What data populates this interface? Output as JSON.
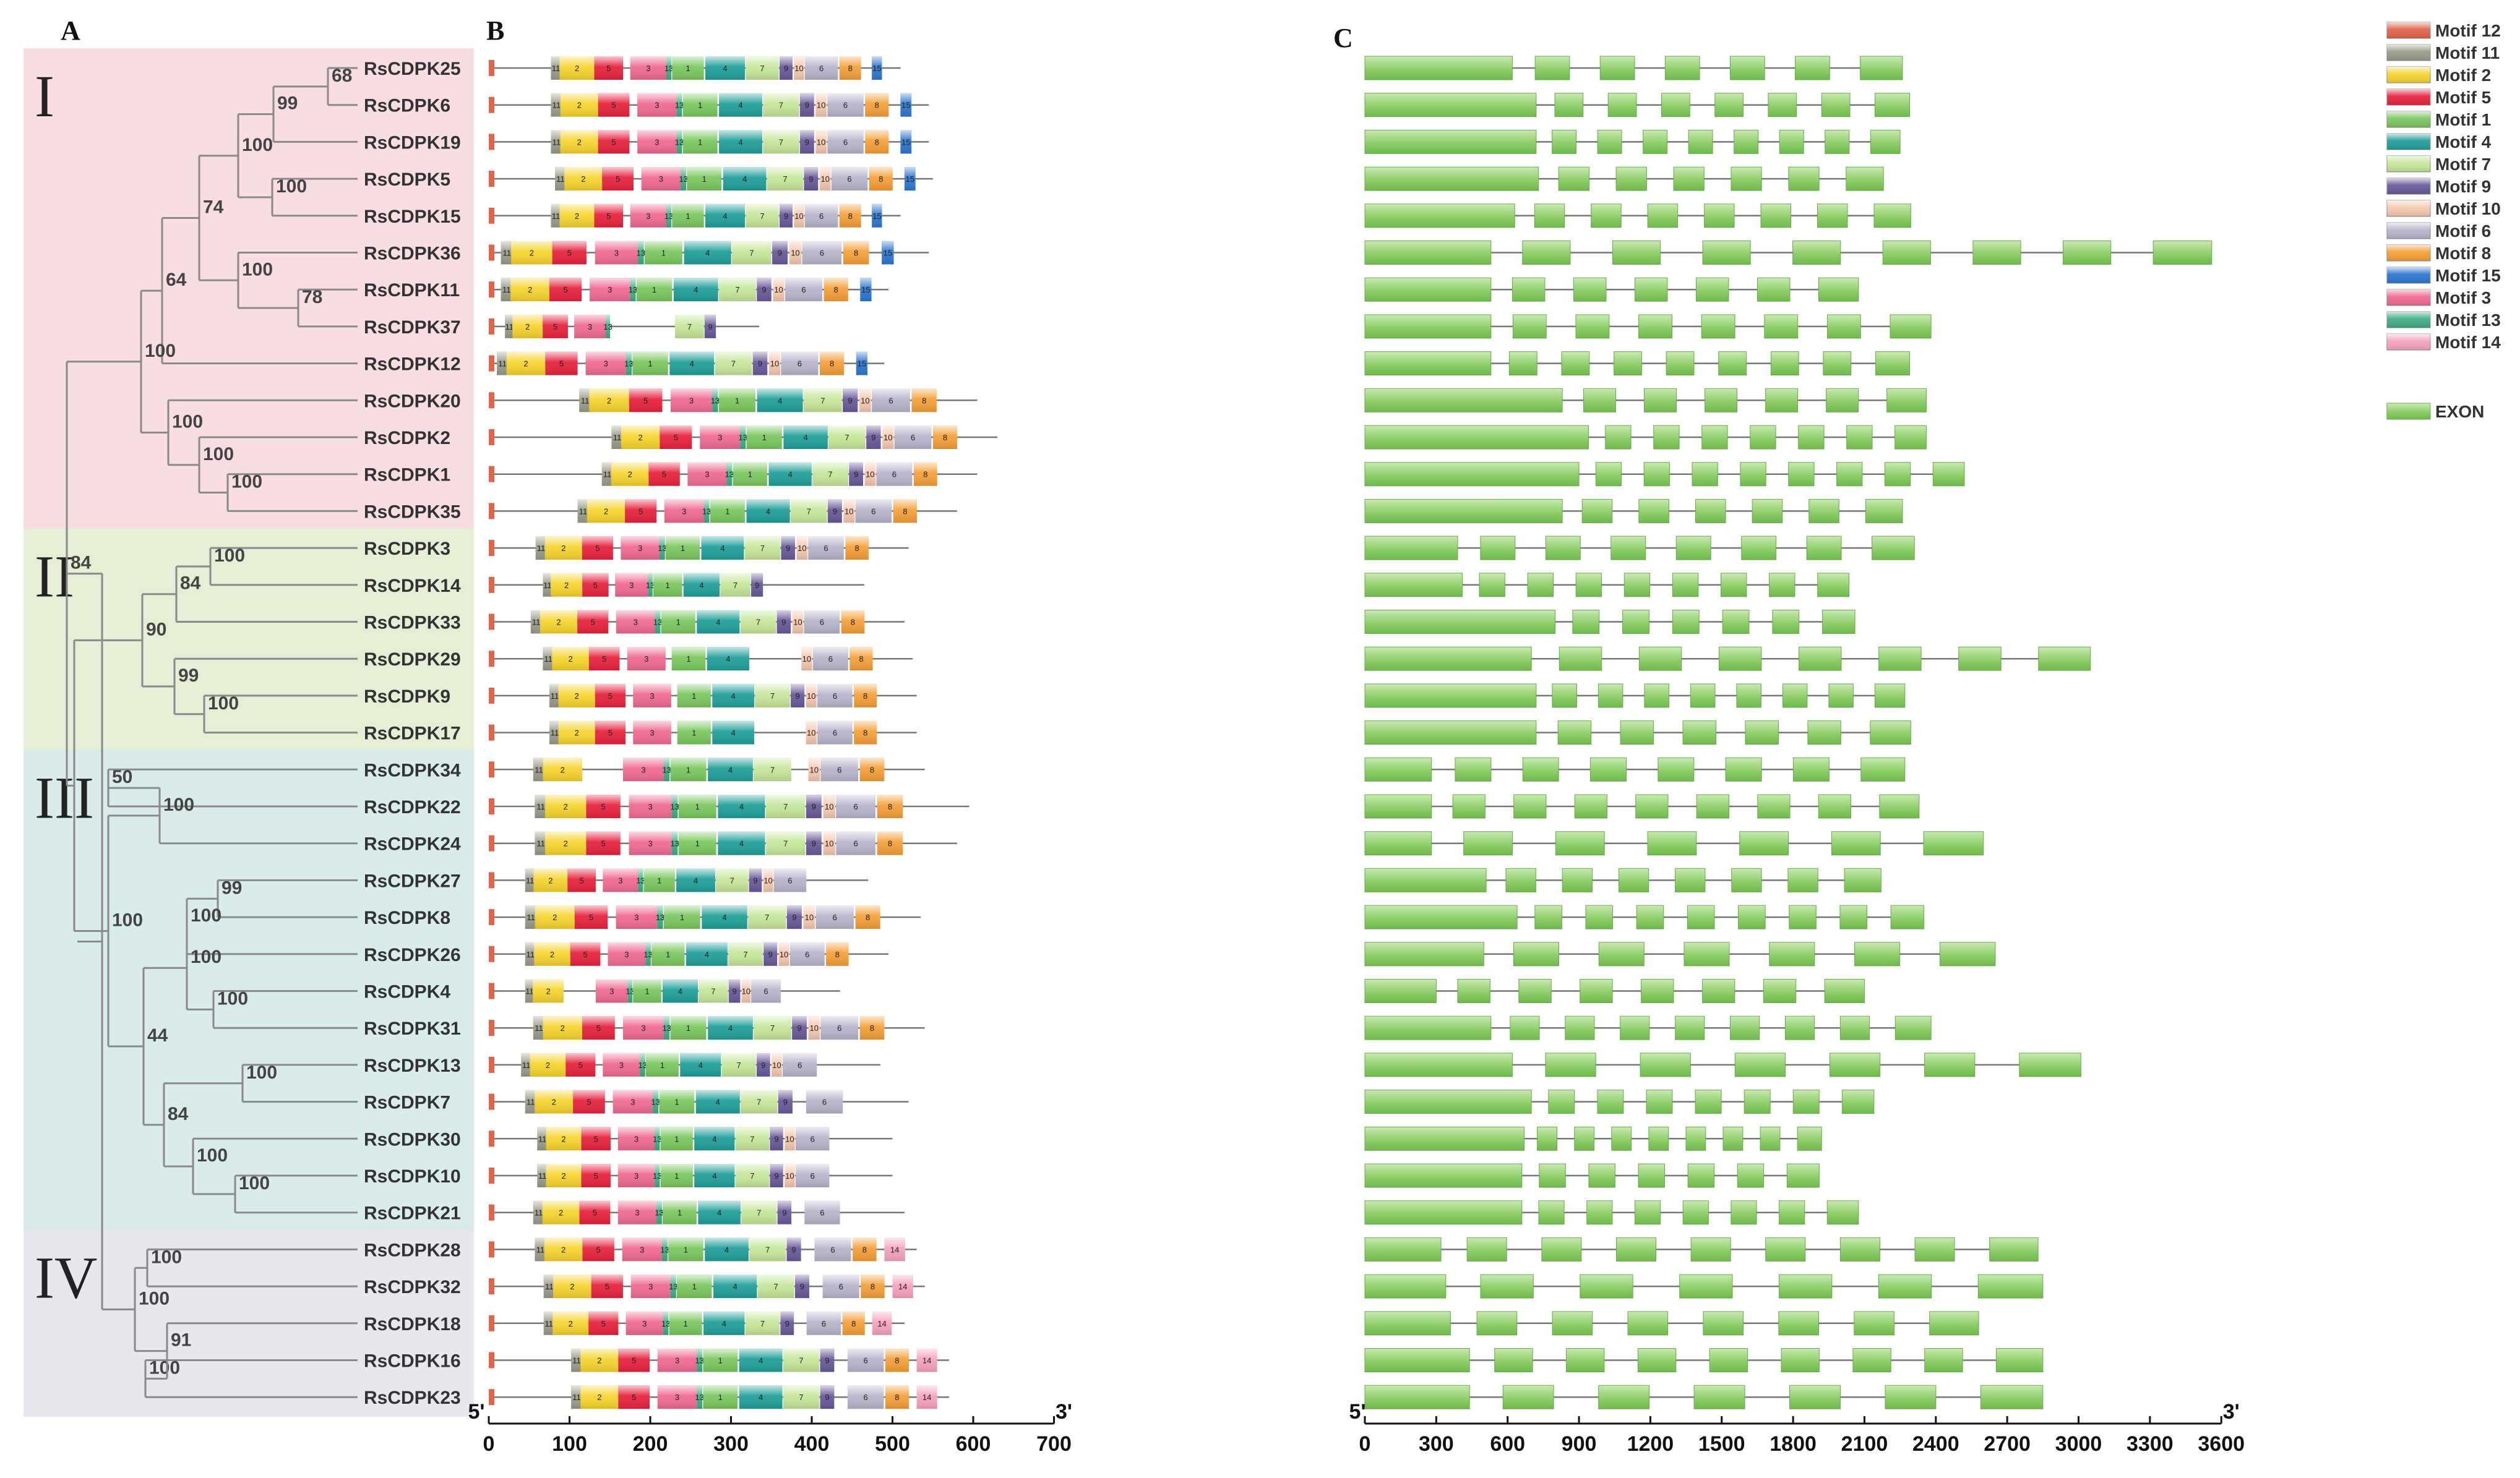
{
  "panels": {
    "a": "A",
    "b": "B",
    "c": "C"
  },
  "groups": [
    {
      "label": "I",
      "color": "#f8dde3",
      "start": 0,
      "end": 12
    },
    {
      "label": "II",
      "color": "#e6efd6",
      "start": 13,
      "end": 18
    },
    {
      "label": "III",
      "color": "#d9ecea",
      "start": 19,
      "end": 31
    },
    {
      "label": "IV",
      "color": "#e9e6ee",
      "start": 32,
      "end": 36
    }
  ],
  "genes": [
    "RsCDPK25",
    "RsCDPK6",
    "RsCDPK19",
    "RsCDPK5",
    "RsCDPK15",
    "RsCDPK36",
    "RsCDPK11",
    "RsCDPK37",
    "RsCDPK12",
    "RsCDPK20",
    "RsCDPK2",
    "RsCDPK1",
    "RsCDPK35",
    "RsCDPK3",
    "RsCDPK14",
    "RsCDPK33",
    "RsCDPK29",
    "RsCDPK9",
    "RsCDPK17",
    "RsCDPK34",
    "RsCDPK22",
    "RsCDPK24",
    "RsCDPK27",
    "RsCDPK8",
    "RsCDPK26",
    "RsCDPK4",
    "RsCDPK31",
    "RsCDPK13",
    "RsCDPK7",
    "RsCDPK30",
    "RsCDPK10",
    "RsCDPK21",
    "RsCDPK28",
    "RsCDPK32",
    "RsCDPK18",
    "RsCDPK16",
    "RsCDPK23"
  ],
  "protein_lengths": [
    510,
    545,
    545,
    550,
    510,
    545,
    495,
    335,
    490,
    605,
    630,
    605,
    580,
    520,
    465,
    515,
    525,
    530,
    530,
    540,
    595,
    580,
    470,
    535,
    495,
    435,
    540,
    485,
    520,
    500,
    500,
    515,
    530,
    540,
    515,
    570,
    570
  ],
  "tree_nodes": [
    {
      "children": [
        0,
        1
      ],
      "support": "68"
    },
    {
      "children": [
        2,
        "n0"
      ],
      "support": "99"
    },
    {
      "children": [
        3,
        4
      ],
      "support": "100"
    },
    {
      "children": [
        "n1",
        "n2"
      ],
      "support": "100"
    },
    {
      "children": [
        6,
        7
      ],
      "support": "78"
    },
    {
      "children": [
        5,
        "n4"
      ],
      "support": "100"
    },
    {
      "children": [
        "n3",
        "n5"
      ],
      "support": "74"
    },
    {
      "children": [
        "n6",
        8
      ],
      "support": "64"
    },
    {
      "children": [
        11,
        12
      ],
      "support": "100"
    },
    {
      "children": [
        10,
        "n8"
      ],
      "support": "100"
    },
    {
      "children": [
        9,
        "n9"
      ],
      "support": "100"
    },
    {
      "children": [
        "n7",
        "n10"
      ],
      "support": "100"
    },
    {
      "children": [
        13,
        14
      ],
      "support": "100"
    },
    {
      "children": [
        "n12",
        15
      ],
      "support": "84"
    },
    {
      "children": [
        17,
        18
      ],
      "support": "100"
    },
    {
      "children": [
        16,
        "n14"
      ],
      "support": "99"
    },
    {
      "children": [
        "n13",
        "n15"
      ],
      "support": "90"
    },
    {
      "children": [
        19,
        20
      ],
      "support": "50"
    },
    {
      "children": [
        "n17",
        21
      ],
      "support": "100"
    },
    {
      "children": [
        22,
        23
      ],
      "support": "99"
    },
    {
      "children": [
        "n19",
        24
      ],
      "support": "100"
    },
    {
      "children": [
        25,
        26
      ],
      "support": "100"
    },
    {
      "children": [
        "n20",
        "n21"
      ],
      "support": "100"
    },
    {
      "children": [
        27,
        28
      ],
      "support": "100"
    },
    {
      "children": [
        30,
        31
      ],
      "support": "100"
    },
    {
      "children": [
        29,
        "n24"
      ],
      "support": "100"
    },
    {
      "children": [
        "n23",
        "n25"
      ],
      "support": "84"
    },
    {
      "children": [
        "n22",
        "n26"
      ],
      "support": "44"
    },
    {
      "children": [
        "n18",
        "n27"
      ],
      "support": "100"
    },
    {
      "children": [
        "n16",
        "n28"
      ],
      "support": ""
    },
    {
      "children": [
        "n11",
        "n29"
      ],
      "support": "84"
    },
    {
      "children": [
        32,
        33
      ],
      "support": "100"
    },
    {
      "children": [
        35,
        36
      ],
      "support": "100"
    },
    {
      "children": [
        34,
        "n32"
      ],
      "support": "91"
    },
    {
      "children": [
        "n31",
        "n33"
      ],
      "support": "100"
    },
    {
      "children": [
        "n30",
        "n34"
      ],
      "support": ""
    }
  ],
  "motif_legend": [
    {
      "id": "12",
      "label": "Motif 12",
      "color": "#e0654a"
    },
    {
      "id": "11",
      "label": "Motif 11",
      "color": "#9c9c8c"
    },
    {
      "id": "2",
      "label": "Motif 2",
      "color": "#f7d531"
    },
    {
      "id": "5",
      "label": "Motif 5",
      "color": "#e8243f"
    },
    {
      "id": "1",
      "label": "Motif 1",
      "color": "#7cc860"
    },
    {
      "id": "4",
      "label": "Motif 4",
      "color": "#22a09a"
    },
    {
      "id": "7",
      "label": "Motif 7",
      "color": "#c6e79a"
    },
    {
      "id": "9",
      "label": "Motif 9",
      "color": "#6a5b9a"
    },
    {
      "id": "10",
      "label": "Motif 10",
      "color": "#f6c9b0"
    },
    {
      "id": "6",
      "label": "Motif 6",
      "color": "#b9b6cc"
    },
    {
      "id": "8",
      "label": "Motif 8",
      "color": "#f5a13a"
    },
    {
      "id": "15",
      "label": "Motif 15",
      "color": "#2f78d2"
    },
    {
      "id": "3",
      "label": "Motif 3",
      "color": "#f06c92"
    },
    {
      "id": "13",
      "label": "Motif 13",
      "color": "#3fae86"
    },
    {
      "id": "14",
      "label": "Motif 14",
      "color": "#f7a3c0"
    }
  ],
  "exon_legend": {
    "label": "EXON",
    "color": "#8fcf6a"
  },
  "protein_axis": {
    "label_start": "5'",
    "label_end": "3'",
    "ticks": [
      "0",
      "100",
      "200",
      "300",
      "400",
      "500",
      "600",
      "700"
    ]
  },
  "gene_axis": {
    "label_start": "5'",
    "label_end": "3'",
    "ticks": [
      "0",
      "300",
      "600",
      "900",
      "1200",
      "1500",
      "1800",
      "2100",
      "2400",
      "2700",
      "3000",
      "3300",
      "3600"
    ]
  }
}
